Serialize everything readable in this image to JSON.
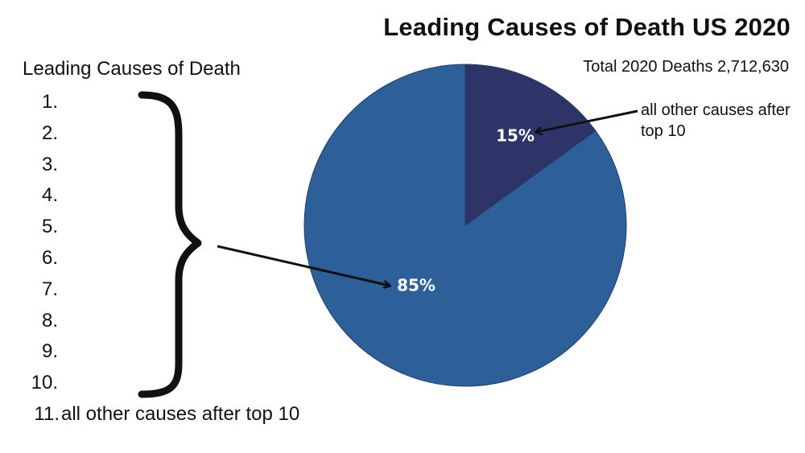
{
  "chart_data": {
    "type": "pie",
    "title": "Leading Causes of Death US 2020",
    "subtitle": "Total 2020 Deaths 2,712,630",
    "slices": [
      {
        "label": "85%",
        "value": 85,
        "color": "#2d5f98"
      },
      {
        "label": "15%",
        "value": 15,
        "color": "#2e3468"
      }
    ],
    "start_angle_deg": 0,
    "direction": "counterclockwise",
    "annotation": "all other causes after top 10"
  },
  "list": {
    "heading": "Leading Causes of Death",
    "items": [
      {
        "num": "1.",
        "label": ""
      },
      {
        "num": "2.",
        "label": ""
      },
      {
        "num": "3.",
        "label": ""
      },
      {
        "num": "4.",
        "label": ""
      },
      {
        "num": "5.",
        "label": ""
      },
      {
        "num": "6.",
        "label": ""
      },
      {
        "num": "7.",
        "label": ""
      },
      {
        "num": "8.",
        "label": ""
      },
      {
        "num": "9.",
        "label": ""
      },
      {
        "num": "10.",
        "label": ""
      },
      {
        "num": "11.",
        "label": "all other causes after top 10"
      }
    ]
  },
  "colors": {
    "edge": "#1f3f6e",
    "ink": "#111111"
  }
}
